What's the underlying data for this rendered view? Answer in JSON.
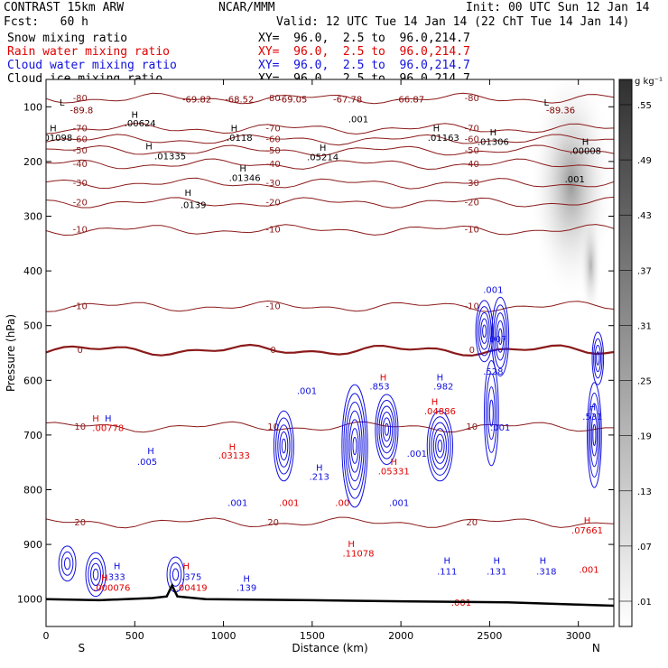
{
  "header": {
    "model": "CONTRAST 15km ARW",
    "center": "NCAR/MMM",
    "init": "Init: 00 UTC Sun 12 Jan 14",
    "fcst": "Fcst:   60 h",
    "valid": "Valid: 12 UTC Tue 14 Jan 14 (22 ChT Tue 14 Jan 14)",
    "fields": [
      {
        "name": "Snow mixing ratio",
        "xy": "XY=  96.0,  2.5 to  96.0,214.7",
        "color": "#000000"
      },
      {
        "name": "Rain water mixing ratio",
        "xy": "XY=  96.0,  2.5 to  96.0,214.7",
        "color": "#e00000"
      },
      {
        "name": "Cloud water mixing ratio",
        "xy": "XY=  96.0,  2.5 to  96.0,214.7",
        "color": "#1010e0"
      },
      {
        "name": "Cloud ice mixing ratio",
        "xy": "XY=  96.0,  2.5 to  96.0,214.7",
        "color": "#000000"
      }
    ]
  },
  "chart_data": {
    "type": "cross-section contour",
    "xlabel": "Distance (km)",
    "ylabel": "Pressure (hPa)",
    "xlim": [
      0,
      3200
    ],
    "ylim": [
      1050,
      50
    ],
    "xticks": [
      0,
      500,
      1000,
      1500,
      2000,
      2500,
      3000
    ],
    "yticks": [
      100,
      200,
      300,
      400,
      500,
      600,
      700,
      800,
      900,
      1000
    ],
    "endpoints": {
      "left": "S",
      "right": "N"
    },
    "colorbar": {
      "unit": "g kg⁻¹",
      "levels": [
        ".01",
        ".07",
        ".13",
        ".19",
        ".25",
        ".31",
        ".37",
        ".43",
        ".49",
        ".55"
      ]
    },
    "temperature_isotherms": [
      {
        "label": "-80",
        "p": 85
      },
      {
        "label": "-70",
        "p": 140
      },
      {
        "label": "-60",
        "p": 160
      },
      {
        "label": "-50",
        "p": 180
      },
      {
        "label": "-40",
        "p": 205
      },
      {
        "label": "-30",
        "p": 240
      },
      {
        "label": "-20",
        "p": 275
      },
      {
        "label": "-10",
        "p": 325
      },
      {
        "label": "-10",
        "p": 465
      },
      {
        "label": "0",
        "p": 545
      },
      {
        "label": "10",
        "p": 685
      },
      {
        "label": "20",
        "p": 860
      }
    ],
    "annotations": [
      {
        "text": "-69.82",
        "x": 850,
        "p": 92,
        "color": "#800000"
      },
      {
        "text": "-68.52",
        "x": 1090,
        "p": 92,
        "color": "#800000"
      },
      {
        "text": "-69.05",
        "x": 1390,
        "p": 92,
        "color": "#800000"
      },
      {
        "text": "-67.78",
        "x": 1700,
        "p": 92,
        "color": "#800000"
      },
      {
        "text": "-66.87",
        "x": 2050,
        "p": 92,
        "color": "#800000"
      },
      {
        "text": "-89.8",
        "x": 200,
        "p": 112,
        "color": "#800000"
      },
      {
        "text": "-89.36",
        "x": 2900,
        "p": 112,
        "color": "#800000"
      },
      {
        "text": ".00624",
        "x": 530,
        "p": 136,
        "color": "#000000"
      },
      {
        "text": ".01098",
        "x": 60,
        "p": 162,
        "color": "#000000"
      },
      {
        "text": ".0118",
        "x": 1090,
        "p": 162,
        "color": "#000000"
      },
      {
        "text": ".01163",
        "x": 2240,
        "p": 162,
        "color": "#000000"
      },
      {
        "text": ".01306",
        "x": 2520,
        "p": 170,
        "color": "#000000"
      },
      {
        "text": ".01335",
        "x": 700,
        "p": 196,
        "color": "#000000"
      },
      {
        "text": ".05214",
        "x": 1560,
        "p": 198,
        "color": "#000000"
      },
      {
        "text": ".00008",
        "x": 3040,
        "p": 186,
        "color": "#000000"
      },
      {
        "text": ".01346",
        "x": 1120,
        "p": 236,
        "color": "#000000"
      },
      {
        "text": ".0139",
        "x": 830,
        "p": 285,
        "color": "#000000"
      },
      {
        "text": ".001",
        "x": 1760,
        "p": 128,
        "color": "#000000"
      },
      {
        "text": ".001",
        "x": 2980,
        "p": 238,
        "color": "#000000"
      },
      {
        "text": ".00778",
        "x": 350,
        "p": 693,
        "color": "#e00000"
      },
      {
        "text": ".005",
        "x": 570,
        "p": 755,
        "color": "#1010e0"
      },
      {
        "text": ".03133",
        "x": 1060,
        "p": 743,
        "color": "#e00000"
      },
      {
        "text": ".001",
        "x": 1470,
        "p": 625,
        "color": "#1010e0"
      },
      {
        "text": ".853",
        "x": 1880,
        "p": 617,
        "color": "#1010e0"
      },
      {
        "text": ".982",
        "x": 2240,
        "p": 617,
        "color": "#1010e0"
      },
      {
        "text": ".04886",
        "x": 2220,
        "p": 662,
        "color": "#e00000"
      },
      {
        "text": ".528",
        "x": 2520,
        "p": 590,
        "color": "#1010e0"
      },
      {
        "text": ".001",
        "x": 2520,
        "p": 440,
        "color": "#1010e0"
      },
      {
        "text": ".007",
        "x": 2540,
        "p": 530,
        "color": "#1010e0"
      },
      {
        "text": ".531",
        "x": 3080,
        "p": 672,
        "color": "#1010e0"
      },
      {
        "text": ".213",
        "x": 1540,
        "p": 782,
        "color": "#1010e0"
      },
      {
        "text": ".05331",
        "x": 1960,
        "p": 772,
        "color": "#e00000"
      },
      {
        "text": ".001",
        "x": 2090,
        "p": 740,
        "color": "#1010e0"
      },
      {
        "text": ".001",
        "x": 2560,
        "p": 692,
        "color": "#1010e0"
      },
      {
        "text": ".001",
        "x": 1080,
        "p": 830,
        "color": "#1010e0"
      },
      {
        "text": ".001",
        "x": 1370,
        "p": 830,
        "color": "#e00000"
      },
      {
        "text": ".001",
        "x": 1990,
        "p": 830,
        "color": "#1010e0"
      },
      {
        "text": ".00",
        "x": 1670,
        "p": 830,
        "color": "#e00000"
      },
      {
        "text": ".07661",
        "x": 3050,
        "p": 880,
        "color": "#e00000"
      },
      {
        "text": ".11078",
        "x": 1760,
        "p": 922,
        "color": "#e00000"
      },
      {
        "text": ".333",
        "x": 390,
        "p": 965,
        "color": "#1010e0"
      },
      {
        "text": ".000076",
        "x": 370,
        "p": 985,
        "color": "#e00000"
      },
      {
        "text": ".375",
        "x": 820,
        "p": 965,
        "color": "#1010e0"
      },
      {
        "text": ".00419",
        "x": 820,
        "p": 985,
        "color": "#e00000"
      },
      {
        "text": ".139",
        "x": 1130,
        "p": 985,
        "color": "#1010e0"
      },
      {
        "text": ".111",
        "x": 2260,
        "p": 955,
        "color": "#1010e0"
      },
      {
        "text": ".131",
        "x": 2540,
        "p": 955,
        "color": "#1010e0"
      },
      {
        "text": ".318",
        "x": 2820,
        "p": 955,
        "color": "#1010e0"
      },
      {
        "text": ".001",
        "x": 2340,
        "p": 1012,
        "color": "#e00000"
      },
      {
        "text": ".001",
        "x": 3060,
        "p": 952,
        "color": "#e00000"
      }
    ],
    "extrema": [
      {
        "text": "L",
        "x": 90,
        "p": 98,
        "color": "#000000"
      },
      {
        "text": "L",
        "x": 2820,
        "p": 98,
        "color": "#000000"
      },
      {
        "text": "H",
        "x": 40,
        "p": 145,
        "color": "#000000"
      },
      {
        "text": "H",
        "x": 500,
        "p": 120,
        "color": "#000000"
      },
      {
        "text": "H",
        "x": 1060,
        "p": 145,
        "color": "#000000"
      },
      {
        "text": "H",
        "x": 2200,
        "p": 145,
        "color": "#000000"
      },
      {
        "text": "H",
        "x": 2520,
        "p": 152,
        "color": "#000000"
      },
      {
        "text": "H",
        "x": 580,
        "p": 178,
        "color": "#000000"
      },
      {
        "text": "H",
        "x": 1560,
        "p": 180,
        "color": "#000000"
      },
      {
        "text": "H",
        "x": 3040,
        "p": 170,
        "color": "#000000"
      },
      {
        "text": "H",
        "x": 1110,
        "p": 218,
        "color": "#000000"
      },
      {
        "text": "H",
        "x": 800,
        "p": 263,
        "color": "#000000"
      },
      {
        "text": "H",
        "x": 280,
        "p": 675,
        "color": "#e00000"
      },
      {
        "text": "H",
        "x": 350,
        "p": 675,
        "color": "#1010e0"
      },
      {
        "text": "H",
        "x": 590,
        "p": 735,
        "color": "#1010e0"
      },
      {
        "text": "H",
        "x": 1050,
        "p": 727,
        "color": "#e00000"
      },
      {
        "text": "H",
        "x": 1900,
        "p": 600,
        "color": "#e00000"
      },
      {
        "text": "H",
        "x": 2220,
        "p": 600,
        "color": "#1010e0"
      },
      {
        "text": "H",
        "x": 2190,
        "p": 645,
        "color": "#e00000"
      },
      {
        "text": "H",
        "x": 1540,
        "p": 765,
        "color": "#1010e0"
      },
      {
        "text": "H",
        "x": 1960,
        "p": 755,
        "color": "#e00000"
      },
      {
        "text": "H",
        "x": 3080,
        "p": 655,
        "color": "#1010e0"
      },
      {
        "text": "H",
        "x": 3050,
        "p": 862,
        "color": "#e00000"
      },
      {
        "text": "H",
        "x": 1720,
        "p": 905,
        "color": "#e00000"
      },
      {
        "text": "H",
        "x": 400,
        "p": 945,
        "color": "#1010e0"
      },
      {
        "text": "H",
        "x": 330,
        "p": 967,
        "color": "#e00000"
      },
      {
        "text": "H",
        "x": 790,
        "p": 945,
        "color": "#e00000"
      },
      {
        "text": "H",
        "x": 1130,
        "p": 968,
        "color": "#1010e0"
      },
      {
        "text": "H",
        "x": 2260,
        "p": 935,
        "color": "#1010e0"
      },
      {
        "text": "H",
        "x": 2800,
        "p": 935,
        "color": "#1010e0"
      },
      {
        "text": "H",
        "x": 2540,
        "p": 935,
        "color": "#1010e0"
      }
    ],
    "cloud_water_cells": [
      {
        "x": 1340,
        "p": 720,
        "rx": 35,
        "rp": 40,
        "n": 5
      },
      {
        "x": 1740,
        "p": 720,
        "rx": 45,
        "rp": 70,
        "n": 7
      },
      {
        "x": 1920,
        "p": 690,
        "rx": 40,
        "rp": 40,
        "n": 6
      },
      {
        "x": 2220,
        "p": 720,
        "rx": 45,
        "rp": 40,
        "n": 6
      },
      {
        "x": 2470,
        "p": 510,
        "rx": 30,
        "rp": 35,
        "n": 5
      },
      {
        "x": 2560,
        "p": 520,
        "rx": 30,
        "rp": 45,
        "n": 5
      },
      {
        "x": 2510,
        "p": 660,
        "rx": 25,
        "rp": 60,
        "n": 4
      },
      {
        "x": 3090,
        "p": 700,
        "rx": 25,
        "rp": 60,
        "n": 5
      },
      {
        "x": 3110,
        "p": 560,
        "rx": 20,
        "rp": 30,
        "n": 4
      },
      {
        "x": 280,
        "p": 955,
        "rx": 35,
        "rp": 25,
        "n": 4
      },
      {
        "x": 120,
        "p": 935,
        "rx": 30,
        "rp": 20,
        "n": 3
      },
      {
        "x": 730,
        "p": 955,
        "rx": 30,
        "rp": 20,
        "n": 3
      }
    ],
    "snow_shading": [
      {
        "x": 2960,
        "p": 240,
        "rx": 60,
        "rp": 55,
        "intensity": 0.55
      },
      {
        "x": 3070,
        "p": 390,
        "rx": 15,
        "rp": 25,
        "intensity": 0.4
      }
    ],
    "surface": [
      {
        "x": 0,
        "p": 1000
      },
      {
        "x": 300,
        "p": 1002
      },
      {
        "x": 600,
        "p": 998
      },
      {
        "x": 680,
        "p": 995
      },
      {
        "x": 710,
        "p": 975
      },
      {
        "x": 740,
        "p": 995
      },
      {
        "x": 900,
        "p": 1000
      },
      {
        "x": 1500,
        "p": 1002
      },
      {
        "x": 2000,
        "p": 1004
      },
      {
        "x": 2600,
        "p": 1006
      },
      {
        "x": 3000,
        "p": 1010
      },
      {
        "x": 3200,
        "p": 1012
      }
    ]
  }
}
